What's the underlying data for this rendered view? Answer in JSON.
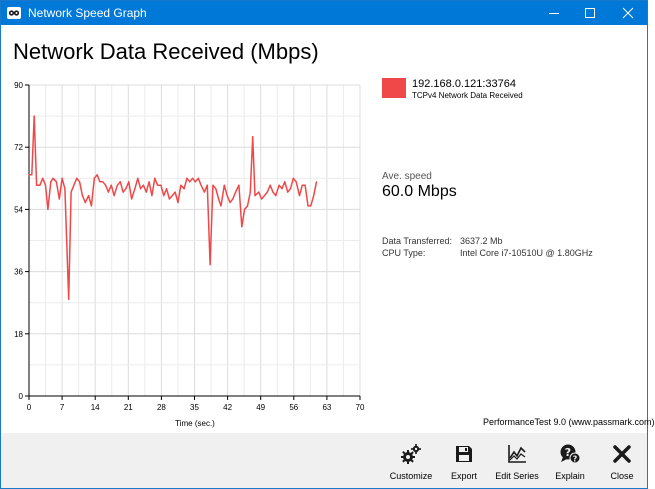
{
  "window": {
    "title": "Network Speed Graph"
  },
  "header": {
    "title": "Network Data Received (Mbps)"
  },
  "legend": {
    "series_name": "192.168.0.121:33764",
    "series_desc": "TCPv4 Network Data Received",
    "color": "#f04848"
  },
  "stats": {
    "avg_label": "Ave. speed",
    "avg_value": "60.0 Mbps",
    "transferred_label": "Data Transferred:",
    "transferred_value": "3637.2 Mb",
    "cpu_label": "CPU Type:",
    "cpu_value": "Intel Core i7-10510U @ 1.80GHz"
  },
  "credit": "PerformanceTest 9.0 (www.passmark.com)",
  "toolbar": {
    "customize": "Customize",
    "export": "Export",
    "edit_series": "Edit Series",
    "explain": "Explain",
    "close": "Close"
  },
  "icons": {
    "app": "performance-test-app-icon",
    "minimize": "minimize-icon",
    "maximize": "maximize-icon",
    "close": "close-icon",
    "customize": "gears-icon",
    "export": "floppy-disk-icon",
    "edit_series": "line-chart-icon",
    "explain": "question-bubble-icon",
    "toolbar_close": "x-icon"
  },
  "chart_data": {
    "type": "line",
    "title": "Network Data Received (Mbps)",
    "xlabel": "Time (sec.)",
    "ylabel": "",
    "xlim": [
      0,
      70
    ],
    "ylim": [
      0,
      90
    ],
    "x_ticks": [
      "0",
      "7",
      "14",
      "21",
      "28",
      "35",
      "42",
      "49",
      "56",
      "63",
      "70"
    ],
    "y_ticks": [
      "0",
      "18",
      "36",
      "54",
      "72",
      "90"
    ],
    "grid": true,
    "legend_position": "right",
    "series": [
      {
        "name": "192.168.0.121:33764",
        "color": "#f04848",
        "points": [
          [
            0.0,
            64
          ],
          [
            0.6,
            64
          ],
          [
            1.1,
            81
          ],
          [
            1.6,
            61
          ],
          [
            2.3,
            61
          ],
          [
            2.9,
            63
          ],
          [
            3.5,
            61
          ],
          [
            4.0,
            54
          ],
          [
            4.6,
            62
          ],
          [
            5.1,
            63
          ],
          [
            5.8,
            62
          ],
          [
            6.4,
            57
          ],
          [
            7.0,
            63
          ],
          [
            7.6,
            60
          ],
          [
            8.4,
            28
          ],
          [
            8.9,
            59
          ],
          [
            9.5,
            61
          ],
          [
            10.1,
            63
          ],
          [
            10.7,
            62
          ],
          [
            11.3,
            58
          ],
          [
            11.9,
            56
          ],
          [
            12.6,
            58
          ],
          [
            13.2,
            55
          ],
          [
            13.8,
            63
          ],
          [
            14.4,
            64
          ],
          [
            15.0,
            62
          ],
          [
            15.6,
            62
          ],
          [
            16.2,
            61
          ],
          [
            16.8,
            59
          ],
          [
            17.4,
            61
          ],
          [
            18.0,
            58
          ],
          [
            18.7,
            61
          ],
          [
            19.3,
            62
          ],
          [
            19.9,
            59
          ],
          [
            20.5,
            60
          ],
          [
            21.1,
            62
          ],
          [
            21.7,
            57
          ],
          [
            22.4,
            60
          ],
          [
            23.0,
            63
          ],
          [
            23.6,
            60
          ],
          [
            24.2,
            61
          ],
          [
            24.8,
            59
          ],
          [
            25.4,
            62
          ],
          [
            26.0,
            58
          ],
          [
            26.6,
            63
          ],
          [
            27.2,
            61
          ],
          [
            27.9,
            61
          ],
          [
            28.5,
            58
          ],
          [
            29.1,
            60
          ],
          [
            29.7,
            57
          ],
          [
            30.3,
            58
          ],
          [
            30.9,
            59
          ],
          [
            31.5,
            56
          ],
          [
            32.1,
            61
          ],
          [
            32.8,
            60
          ],
          [
            33.4,
            63
          ],
          [
            34.0,
            62
          ],
          [
            34.6,
            63
          ],
          [
            35.2,
            62
          ],
          [
            35.8,
            63
          ],
          [
            36.4,
            61
          ],
          [
            37.1,
            59
          ],
          [
            37.7,
            61
          ],
          [
            38.3,
            38
          ],
          [
            38.9,
            61
          ],
          [
            39.5,
            60
          ],
          [
            40.1,
            57
          ],
          [
            40.6,
            55
          ],
          [
            41.3,
            61
          ],
          [
            41.9,
            58
          ],
          [
            42.5,
            56
          ],
          [
            43.1,
            57
          ],
          [
            43.7,
            59
          ],
          [
            44.4,
            61
          ],
          [
            45.0,
            49
          ],
          [
            45.6,
            54
          ],
          [
            46.2,
            55
          ],
          [
            46.8,
            59
          ],
          [
            47.3,
            75
          ],
          [
            47.8,
            58
          ],
          [
            48.6,
            59
          ],
          [
            49.2,
            57
          ],
          [
            49.8,
            58
          ],
          [
            50.4,
            59
          ],
          [
            51.0,
            61
          ],
          [
            51.6,
            59
          ],
          [
            52.2,
            58
          ],
          [
            52.9,
            61
          ],
          [
            53.5,
            60
          ],
          [
            54.1,
            62
          ],
          [
            54.7,
            59
          ],
          [
            55.3,
            60
          ],
          [
            55.9,
            63
          ],
          [
            56.5,
            62
          ],
          [
            57.2,
            58
          ],
          [
            57.8,
            61
          ],
          [
            58.4,
            61
          ],
          [
            59.0,
            55
          ],
          [
            59.6,
            55
          ],
          [
            60.2,
            58
          ],
          [
            60.8,
            62
          ]
        ]
      }
    ]
  }
}
